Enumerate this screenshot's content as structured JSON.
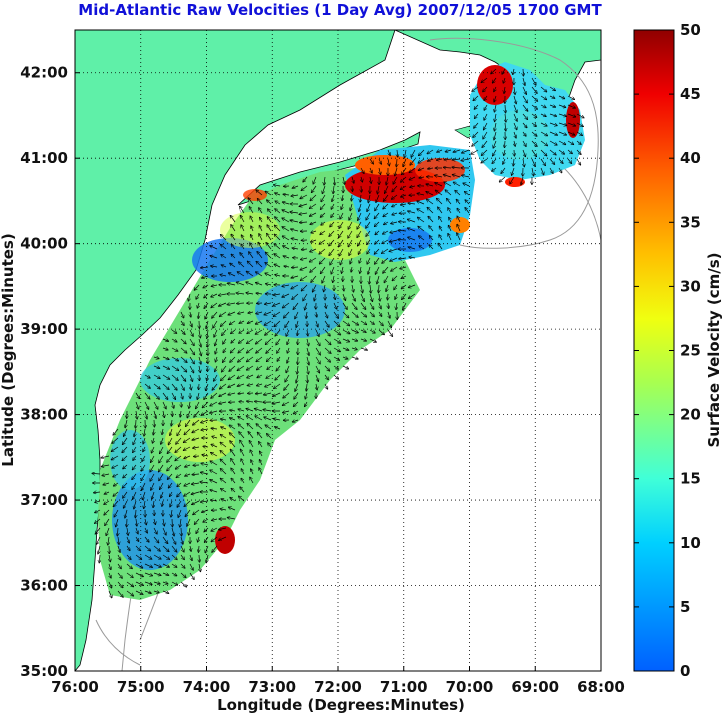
{
  "title": "Mid-Atlantic Raw Velocities (1 Day Avg) 2007/12/05 1700 GMT",
  "x_axis": {
    "label": "Longitude (Degrees:Minutes)",
    "ticks": [
      "76:00",
      "75:00",
      "74:00",
      "73:00",
      "72:00",
      "71:00",
      "70:00",
      "69:00",
      "68:00"
    ],
    "range_deg_west": [
      76,
      68
    ]
  },
  "y_axis": {
    "label": "Latitude (Degrees:Minutes)",
    "ticks": [
      "35:00",
      "36:00",
      "37:00",
      "38:00",
      "39:00",
      "40:00",
      "41:00",
      "42:00"
    ],
    "range_deg_north": [
      35,
      42.5
    ]
  },
  "colorbar": {
    "label": "Surface Velocity (cm/s)",
    "ticks": [
      "0",
      "5",
      "10",
      "15",
      "20",
      "25",
      "30",
      "35",
      "40",
      "45",
      "50"
    ],
    "range": [
      0,
      50
    ],
    "colormap": "jet"
  },
  "colors": {
    "land": "#5ff0a8",
    "title": "#1010d8",
    "coast": "#000000",
    "bathymetry": "#9a9a9a",
    "grid": "#000000"
  }
}
